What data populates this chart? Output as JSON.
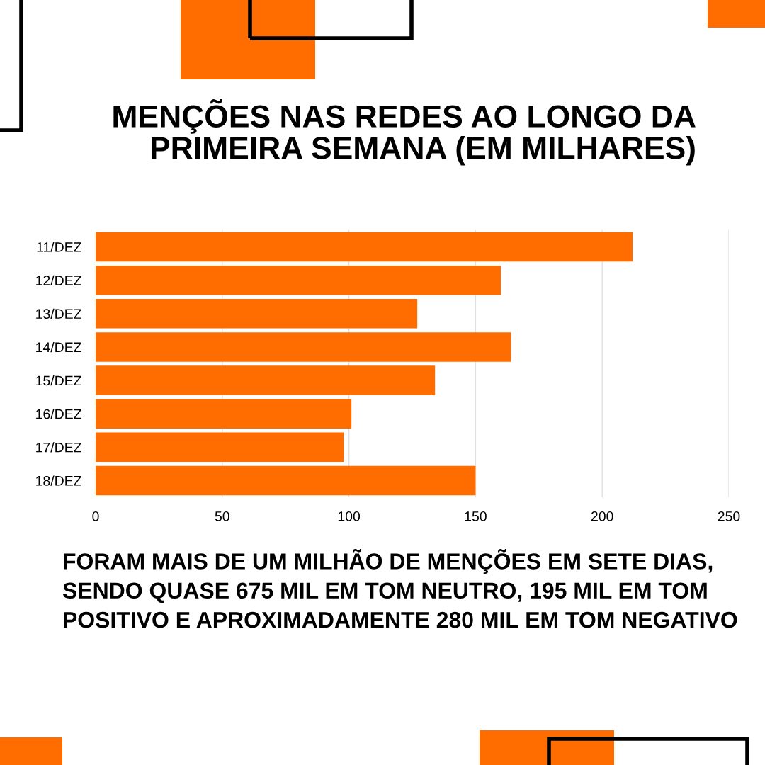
{
  "chart_data": {
    "type": "bar",
    "orientation": "horizontal",
    "title": "MENÇÕES NAS REDES AO LONGO DA\nPRIMEIRA SEMANA (EM MILHARES)",
    "categories": [
      "11/DEZ",
      "12/DEZ",
      "13/DEZ",
      "14/DEZ",
      "15/DEZ",
      "16/DEZ",
      "17/DEZ",
      "18/DEZ"
    ],
    "values": [
      212,
      160,
      127,
      164,
      134,
      101,
      98,
      150
    ],
    "color": "#ff6d00",
    "xlim": [
      0,
      250
    ],
    "xticks": [
      0,
      50,
      100,
      150,
      200,
      250
    ],
    "grid": "x",
    "annotations": [
      "FORAM MAIS DE UM MILHÃO DE MENÇÕES EM SETE DIAS, SENDO QUASE 675 MIL EM TOM NEUTRO, 195 MIL EM TOM POSITIVO E APROXIMADAMENTE 280 MIL EM TOM NEGATIVO"
    ]
  }
}
